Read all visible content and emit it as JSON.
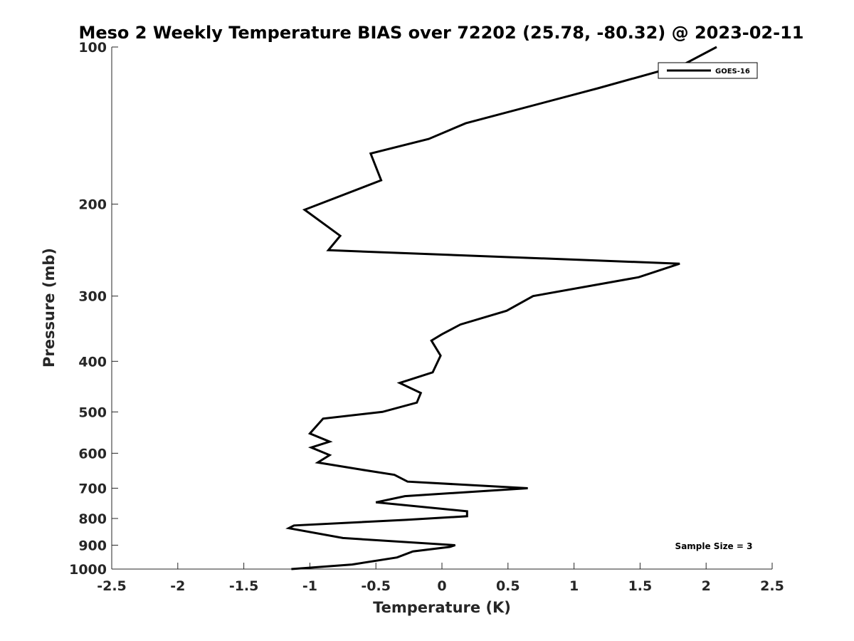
{
  "chart_data": {
    "type": "line",
    "title": "Meso 2 Weekly Temperature BIAS over 72202 (25.78, -80.32) @ 2023-02-11",
    "xlabel": "Temperature (K)",
    "ylabel": "Pressure (mb)",
    "xlim": [
      -2.5,
      2.5
    ],
    "ylim": [
      100,
      1000
    ],
    "y_scale": "log",
    "y_reversed": true,
    "grid": false,
    "legend_position": "top-right",
    "x_ticks": [
      "-2.5",
      "-2",
      "-1.5",
      "-1",
      "-0.5",
      "0",
      "0.5",
      "1",
      "1.5",
      "2",
      "2.5"
    ],
    "y_ticks": [
      "100",
      "200",
      "300",
      "400",
      "500",
      "600",
      "700",
      "800",
      "900",
      "1000"
    ],
    "annotation": "Sample Size = 3",
    "series": [
      {
        "name": "GOES-16",
        "color": "#000000",
        "points": [
          {
            "x": 2.08,
            "p": 100
          },
          {
            "x": 1.83,
            "p": 108
          },
          {
            "x": 1.18,
            "p": 120
          },
          {
            "x": 0.18,
            "p": 140
          },
          {
            "x": -0.1,
            "p": 150
          },
          {
            "x": -0.54,
            "p": 160
          },
          {
            "x": -0.46,
            "p": 180
          },
          {
            "x": -1.04,
            "p": 205
          },
          {
            "x": -0.77,
            "p": 230
          },
          {
            "x": -0.86,
            "p": 245
          },
          {
            "x": 1.8,
            "p": 260
          },
          {
            "x": 1.49,
            "p": 276
          },
          {
            "x": 0.69,
            "p": 300
          },
          {
            "x": 0.49,
            "p": 320
          },
          {
            "x": 0.14,
            "p": 340
          },
          {
            "x": 0.0,
            "p": 355
          },
          {
            "x": -0.08,
            "p": 365
          },
          {
            "x": -0.01,
            "p": 390
          },
          {
            "x": -0.07,
            "p": 420
          },
          {
            "x": -0.32,
            "p": 440
          },
          {
            "x": -0.16,
            "p": 460
          },
          {
            "x": -0.19,
            "p": 480
          },
          {
            "x": -0.45,
            "p": 500
          },
          {
            "x": -0.9,
            "p": 515
          },
          {
            "x": -1.0,
            "p": 550
          },
          {
            "x": -0.85,
            "p": 570
          },
          {
            "x": -0.99,
            "p": 585
          },
          {
            "x": -0.85,
            "p": 605
          },
          {
            "x": -0.94,
            "p": 625
          },
          {
            "x": -0.61,
            "p": 645
          },
          {
            "x": -0.36,
            "p": 660
          },
          {
            "x": -0.26,
            "p": 680
          },
          {
            "x": 0.65,
            "p": 700
          },
          {
            "x": -0.28,
            "p": 725
          },
          {
            "x": -0.5,
            "p": 745
          },
          {
            "x": 0.19,
            "p": 775
          },
          {
            "x": 0.19,
            "p": 792
          },
          {
            "x": -0.27,
            "p": 805
          },
          {
            "x": -1.12,
            "p": 825
          },
          {
            "x": -1.16,
            "p": 835
          },
          {
            "x": -0.75,
            "p": 872
          },
          {
            "x": 0.1,
            "p": 900
          },
          {
            "x": 0.06,
            "p": 907
          },
          {
            "x": -0.22,
            "p": 925
          },
          {
            "x": -0.34,
            "p": 950
          },
          {
            "x": -0.68,
            "p": 980
          },
          {
            "x": -1.14,
            "p": 1000
          }
        ]
      }
    ]
  }
}
